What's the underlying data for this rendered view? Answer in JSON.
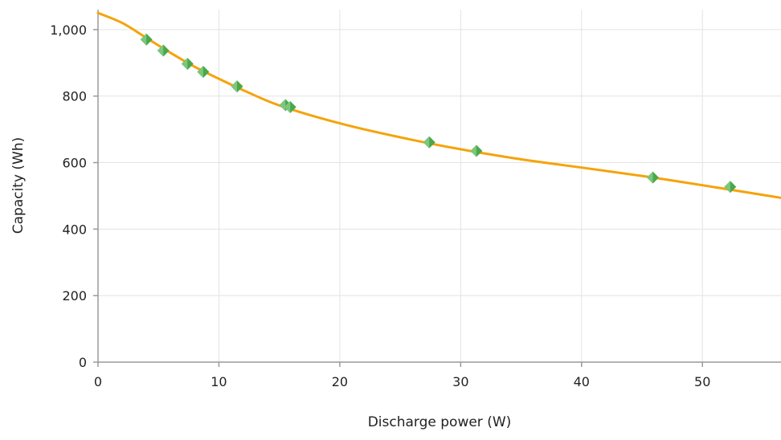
{
  "colors": {
    "fit_line": "#f5a30a",
    "marker_fill": "#4aa84a",
    "marker_highlight": "#8fd08f",
    "gridline": "#e3e3e3",
    "axis": "#9a9a9a"
  },
  "chart_data": {
    "type": "scatter",
    "title": "",
    "xlabel": "Discharge power (W)",
    "ylabel": "Capacity (Wh)",
    "xlim": [
      0,
      56.5
    ],
    "ylim": [
      0,
      1060
    ],
    "grid": true,
    "legend": "none",
    "x_ticks": [
      {
        "value": 0,
        "label": "0"
      },
      {
        "value": 10,
        "label": "10"
      },
      {
        "value": 20,
        "label": "20"
      },
      {
        "value": 30,
        "label": "30"
      },
      {
        "value": 40,
        "label": "40"
      },
      {
        "value": 50,
        "label": "50"
      }
    ],
    "y_ticks": [
      {
        "value": 0,
        "label": "0"
      },
      {
        "value": 200,
        "label": "200"
      },
      {
        "value": 400,
        "label": "400"
      },
      {
        "value": 600,
        "label": "600"
      },
      {
        "value": 800,
        "label": "800"
      },
      {
        "value": 1000,
        "label": "1,000"
      }
    ],
    "series": [
      {
        "kind": "scatter",
        "marker": "diamond",
        "x": [
          4.0,
          5.4,
          7.4,
          8.7,
          11.5,
          15.5,
          15.9,
          27.4,
          31.3,
          45.9,
          52.3
        ],
        "y": [
          970,
          937,
          897,
          873,
          829,
          773,
          767,
          661,
          635,
          555,
          527
        ]
      },
      {
        "kind": "line",
        "x": [
          0,
          2,
          4,
          6,
          8,
          10,
          12,
          15,
          20,
          25,
          30,
          35,
          40,
          45,
          50,
          56.5
        ],
        "y": [
          1050,
          1020,
          975,
          930,
          888,
          852,
          818,
          772,
          718,
          676,
          640,
          610,
          585,
          560,
          532,
          494
        ]
      }
    ]
  }
}
